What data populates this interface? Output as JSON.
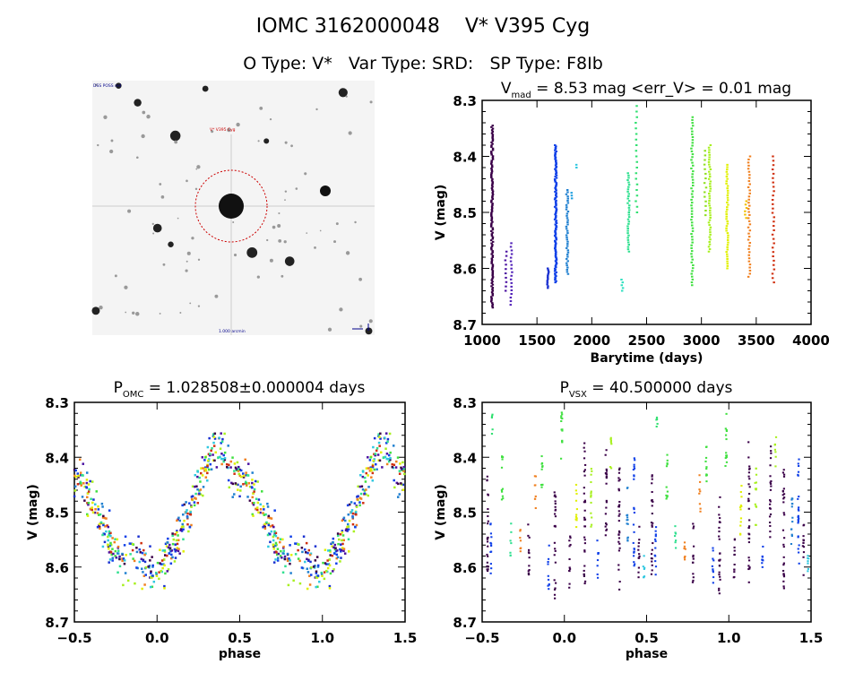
{
  "header": {
    "title": "IOMC 3162000048    V* V395 Cyg",
    "subtitle": "O Type: V*   Var Type: SRD:   SP Type: F8Ib"
  },
  "finder": {
    "corner_label": "DSS POSS red",
    "target_label": "V* V395 Cyg",
    "bottom_label": "1.000 arcmin"
  },
  "chart_data": [
    {
      "type": "scatter",
      "title_main": "V",
      "title_sub": "mad",
      "title_rest": " = 8.53 mag <err_V> = 0.01 mag",
      "xlabel": "Barytime (days)",
      "ylabel": "V (mag)",
      "xlim": [
        1000,
        4000
      ],
      "ylim": [
        8.7,
        8.3
      ],
      "xticks": [
        "1000",
        "1500",
        "2000",
        "2500",
        "3000",
        "3500",
        "4000"
      ],
      "yticks": [
        "8.3",
        "8.4",
        "8.5",
        "8.6",
        "8.7"
      ],
      "clusters": [
        {
          "x": 1085,
          "ymin": 8.345,
          "ymax": 8.67,
          "color": "#3a0048",
          "n": 120
        },
        {
          "x": 1210,
          "ymin": 8.57,
          "ymax": 8.64,
          "color": "#4a10a0",
          "n": 10
        },
        {
          "x": 1260,
          "ymin": 8.555,
          "ymax": 8.665,
          "color": "#5020b8",
          "n": 18
        },
        {
          "x": 1595,
          "ymin": 8.6,
          "ymax": 8.635,
          "color": "#1a30d0",
          "n": 12
        },
        {
          "x": 1665,
          "ymin": 8.38,
          "ymax": 8.625,
          "color": "#1040e8",
          "n": 110
        },
        {
          "x": 1770,
          "ymin": 8.46,
          "ymax": 8.61,
          "color": "#2080d0",
          "n": 40
        },
        {
          "x": 1810,
          "ymin": 8.465,
          "ymax": 8.475,
          "color": "#20a0e0",
          "n": 3
        },
        {
          "x": 1860,
          "ymin": 8.415,
          "ymax": 8.42,
          "color": "#30c8e0",
          "n": 2
        },
        {
          "x": 2270,
          "ymin": 8.62,
          "ymax": 8.64,
          "color": "#30e0c0",
          "n": 5
        },
        {
          "x": 2330,
          "ymin": 8.43,
          "ymax": 8.57,
          "color": "#30e090",
          "n": 35
        },
        {
          "x": 2400,
          "ymin": 8.31,
          "ymax": 8.5,
          "color": "#30e070",
          "n": 20
        },
        {
          "x": 2910,
          "ymin": 8.33,
          "ymax": 8.63,
          "color": "#40e040",
          "n": 60
        },
        {
          "x": 3030,
          "ymin": 8.39,
          "ymax": 8.505,
          "color": "#90e020",
          "n": 15
        },
        {
          "x": 3070,
          "ymin": 8.38,
          "ymax": 8.57,
          "color": "#a8f020",
          "n": 45
        },
        {
          "x": 3230,
          "ymin": 8.415,
          "ymax": 8.6,
          "color": "#e0f000",
          "n": 45
        },
        {
          "x": 3400,
          "ymin": 8.48,
          "ymax": 8.51,
          "color": "#f0c000",
          "n": 6
        },
        {
          "x": 3430,
          "ymin": 8.4,
          "ymax": 8.615,
          "color": "#f08020",
          "n": 40
        },
        {
          "x": 3650,
          "ymin": 8.4,
          "ymax": 8.625,
          "color": "#d03010",
          "n": 30
        }
      ]
    },
    {
      "type": "scatter",
      "title_main": "P",
      "title_sub": "OMC",
      "title_rest": " = 1.028508±0.000004 days",
      "xlabel": "phase",
      "ylabel": "V (mag)",
      "xlim": [
        -0.5,
        1.5
      ],
      "ylim": [
        8.7,
        8.3
      ],
      "xticks": [
        "-0.5",
        "0.0",
        "0.5",
        "1.0",
        "1.5"
      ],
      "yticks": [
        "8.3",
        "8.4",
        "8.5",
        "8.6",
        "8.7"
      ],
      "mean_curve": [
        [
          -0.5,
          8.43
        ],
        [
          -0.45,
          8.45
        ],
        [
          -0.4,
          8.48
        ],
        [
          -0.3,
          8.54
        ],
        [
          -0.2,
          8.6
        ],
        [
          -0.15,
          8.58
        ],
        [
          -0.1,
          8.59
        ],
        [
          -0.05,
          8.6
        ],
        [
          0.0,
          8.61
        ],
        [
          0.05,
          8.58
        ],
        [
          0.1,
          8.56
        ],
        [
          0.2,
          8.5
        ],
        [
          0.25,
          8.45
        ],
        [
          0.3,
          8.41
        ],
        [
          0.35,
          8.38
        ],
        [
          0.4,
          8.39
        ],
        [
          0.45,
          8.43
        ],
        [
          0.5,
          8.43
        ]
      ],
      "scatter_mag": 0.035,
      "points_per_cycle": 420,
      "colors": [
        "#3a0048",
        "#4a10a0",
        "#1a30d0",
        "#1040e8",
        "#2080d0",
        "#30c8e0",
        "#30e090",
        "#40e040",
        "#a8f020",
        "#e0f000",
        "#f08020",
        "#d03010"
      ]
    },
    {
      "type": "scatter",
      "title_main": "P",
      "title_sub": "VSX",
      "title_rest": " = 40.500000 days",
      "xlabel": "phase",
      "ylabel": "V (mag)",
      "xlim": [
        -0.5,
        1.5
      ],
      "ylim": [
        8.7,
        8.3
      ],
      "xticks": [
        "-0.5",
        "0.0",
        "0.5",
        "1.0",
        "1.5"
      ],
      "yticks": [
        "8.3",
        "8.4",
        "8.5",
        "8.6",
        "8.7"
      ],
      "segments": [
        {
          "x": -0.47,
          "ymin": 8.43,
          "ymax": 8.62,
          "color": "#3a0048"
        },
        {
          "x": -0.45,
          "ymin": 8.52,
          "ymax": 8.62,
          "color": "#1040e8"
        },
        {
          "x": -0.44,
          "ymin": 8.32,
          "ymax": 8.36,
          "color": "#30e070"
        },
        {
          "x": -0.38,
          "ymin": 8.39,
          "ymax": 8.48,
          "color": "#40e040"
        },
        {
          "x": -0.33,
          "ymin": 8.52,
          "ymax": 8.58,
          "color": "#30e090"
        },
        {
          "x": -0.27,
          "ymin": 8.53,
          "ymax": 8.59,
          "color": "#f08020"
        },
        {
          "x": -0.22,
          "ymin": 8.52,
          "ymax": 8.63,
          "color": "#3a0048"
        },
        {
          "x": -0.18,
          "ymin": 8.43,
          "ymax": 8.5,
          "color": "#f08020"
        },
        {
          "x": -0.14,
          "ymin": 8.38,
          "ymax": 8.46,
          "color": "#40e040"
        },
        {
          "x": -0.1,
          "ymin": 8.56,
          "ymax": 8.64,
          "color": "#1040e8"
        },
        {
          "x": -0.06,
          "ymin": 8.45,
          "ymax": 8.66,
          "color": "#3a0048"
        },
        {
          "x": -0.02,
          "ymin": 8.31,
          "ymax": 8.42,
          "color": "#40e040"
        },
        {
          "x": 0.03,
          "ymin": 8.54,
          "ymax": 8.64,
          "color": "#3a0048"
        },
        {
          "x": 0.07,
          "ymin": 8.45,
          "ymax": 8.55,
          "color": "#e0f000"
        },
        {
          "x": 0.12,
          "ymin": 8.37,
          "ymax": 8.63,
          "color": "#3a0048"
        },
        {
          "x": 0.16,
          "ymin": 8.42,
          "ymax": 8.53,
          "color": "#a8f020"
        },
        {
          "x": 0.2,
          "ymin": 8.55,
          "ymax": 8.62,
          "color": "#1040e8"
        },
        {
          "x": 0.25,
          "ymin": 8.38,
          "ymax": 8.56,
          "color": "#3a0048"
        },
        {
          "x": 0.28,
          "ymin": 8.36,
          "ymax": 8.42,
          "color": "#a8f020"
        },
        {
          "x": 0.33,
          "ymin": 8.42,
          "ymax": 8.66,
          "color": "#3a0048"
        },
        {
          "x": 0.38,
          "ymin": 8.45,
          "ymax": 8.56,
          "color": "#2080d0"
        },
        {
          "x": 0.42,
          "ymin": 8.4,
          "ymax": 8.6,
          "color": "#1040e8"
        },
        {
          "x": 0.45,
          "ymin": 8.52,
          "ymax": 8.62,
          "color": "#3a0048"
        },
        {
          "x": 0.48,
          "ymin": 8.57,
          "ymax": 8.63,
          "color": "#30c8e0"
        }
      ]
    }
  ]
}
